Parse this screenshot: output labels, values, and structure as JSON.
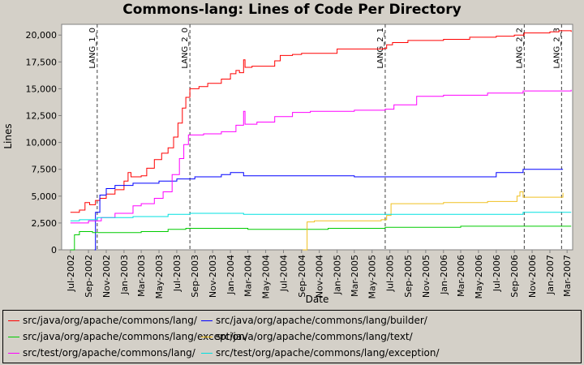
{
  "chart_data": {
    "type": "line",
    "title": "Commons-lang: Lines of Code Per Directory",
    "xlabel": "Date",
    "ylabel": "Lines",
    "ylim": [
      0,
      21000
    ],
    "xlim": [
      "2002-06-01",
      "2007-03-20"
    ],
    "y_ticks": [
      "0",
      "2,500",
      "5,000",
      "7,500",
      "10,000",
      "12,500",
      "15,000",
      "17,500",
      "20,000"
    ],
    "x_ticks": [
      "Jul-2002",
      "Sep-2002",
      "Nov-2002",
      "Jan-2003",
      "Mar-2003",
      "May-2003",
      "Jul-2003",
      "Sep-2003",
      "Nov-2003",
      "Jan-2004",
      "Mar-2004",
      "May-2004",
      "Jul-2004",
      "Sep-2004",
      "Nov-2004",
      "Jan-2005",
      "Mar-2005",
      "May-2005",
      "Jul-2005",
      "Sep-2005",
      "Nov-2005",
      "Jan-2006",
      "Mar-2006",
      "May-2006",
      "Jul-2006",
      "Sep-2006",
      "Nov-2006",
      "Jan-2007",
      "Mar-2007"
    ],
    "legend_position": "bottom",
    "grid": false,
    "markers": [
      {
        "label": "LANG_1_0",
        "date": "2002-10-01"
      },
      {
        "label": "LANG_2_0",
        "date": "2003-08-15"
      },
      {
        "label": "LANG_2_1",
        "date": "2005-06-15"
      },
      {
        "label": "LANG_2_2",
        "date": "2006-10-05"
      },
      {
        "label": "LANG_2_3",
        "date": "2007-02-10"
      }
    ],
    "series": [
      {
        "name": "src/java/org/apache/commons/lang/",
        "color": "#ff0000",
        "points": [
          [
            "2002-07-01",
            3500
          ],
          [
            "2002-08-01",
            3700
          ],
          [
            "2002-08-20",
            4400
          ],
          [
            "2002-09-05",
            4200
          ],
          [
            "2002-09-25",
            4600
          ],
          [
            "2002-10-10",
            4800
          ],
          [
            "2002-11-01",
            5200
          ],
          [
            "2002-12-01",
            5600
          ],
          [
            "2003-01-01",
            6400
          ],
          [
            "2003-01-15",
            7200
          ],
          [
            "2003-01-25",
            6800
          ],
          [
            "2003-03-01",
            6900
          ],
          [
            "2003-03-20",
            7600
          ],
          [
            "2003-04-15",
            8400
          ],
          [
            "2003-05-10",
            9000
          ],
          [
            "2003-06-01",
            9500
          ],
          [
            "2003-06-20",
            10500
          ],
          [
            "2003-07-05",
            11800
          ],
          [
            "2003-07-20",
            13200
          ],
          [
            "2003-08-01",
            14200
          ],
          [
            "2003-08-15",
            15000
          ],
          [
            "2003-09-15",
            15200
          ],
          [
            "2003-10-15",
            15500
          ],
          [
            "2003-12-01",
            15900
          ],
          [
            "2004-01-01",
            16400
          ],
          [
            "2004-01-20",
            16700
          ],
          [
            "2004-02-01",
            16500
          ],
          [
            "2004-02-15",
            17700
          ],
          [
            "2004-02-20",
            17000
          ],
          [
            "2004-03-15",
            17100
          ],
          [
            "2004-06-01",
            17600
          ],
          [
            "2004-06-20",
            18100
          ],
          [
            "2004-08-01",
            18200
          ],
          [
            "2004-09-01",
            18300
          ],
          [
            "2004-12-01",
            18300
          ],
          [
            "2005-01-01",
            18700
          ],
          [
            "2005-03-01",
            18700
          ],
          [
            "2005-06-10",
            18750
          ],
          [
            "2005-06-20",
            19100
          ],
          [
            "2005-07-10",
            19300
          ],
          [
            "2005-09-01",
            19500
          ],
          [
            "2006-01-01",
            19600
          ],
          [
            "2006-04-01",
            19800
          ],
          [
            "2006-07-01",
            19900
          ],
          [
            "2006-09-01",
            20000
          ],
          [
            "2006-10-05",
            20200
          ],
          [
            "2007-01-01",
            20300
          ],
          [
            "2007-02-01",
            20400
          ],
          [
            "2007-03-15",
            20300
          ]
        ]
      },
      {
        "name": "src/java/org/apache/commons/lang/builder/",
        "color": "#0000ff",
        "points": [
          [
            "2002-09-22",
            0
          ],
          [
            "2002-09-25",
            3500
          ],
          [
            "2002-10-10",
            5100
          ],
          [
            "2002-11-01",
            5700
          ],
          [
            "2002-12-01",
            6000
          ],
          [
            "2003-02-01",
            6200
          ],
          [
            "2003-05-01",
            6400
          ],
          [
            "2003-07-01",
            6600
          ],
          [
            "2003-09-01",
            6800
          ],
          [
            "2003-12-01",
            7000
          ],
          [
            "2004-01-01",
            7200
          ],
          [
            "2004-02-15",
            6900
          ],
          [
            "2004-08-01",
            6900
          ],
          [
            "2005-03-01",
            6800
          ],
          [
            "2006-06-01",
            6800
          ],
          [
            "2006-07-01",
            7200
          ],
          [
            "2006-10-01",
            7500
          ],
          [
            "2007-02-15",
            7500
          ]
        ]
      },
      {
        "name": "src/java/org/apache/commons/lang/exception/",
        "color": "#00cc00",
        "points": [
          [
            "2002-07-01",
            0
          ],
          [
            "2002-07-15",
            1400
          ],
          [
            "2002-08-01",
            1700
          ],
          [
            "2002-09-15",
            1600
          ],
          [
            "2003-03-01",
            1700
          ],
          [
            "2003-06-01",
            1900
          ],
          [
            "2003-08-01",
            2000
          ],
          [
            "2004-02-15",
            2000
          ],
          [
            "2004-03-01",
            1900
          ],
          [
            "2004-12-01",
            2000
          ],
          [
            "2005-06-15",
            2100
          ],
          [
            "2006-03-01",
            2200
          ],
          [
            "2006-06-01",
            2200
          ],
          [
            "2007-03-15",
            2200
          ]
        ]
      },
      {
        "name": "src/java/org/apache/commons/lang/text/",
        "color": "#f0c020",
        "points": [
          [
            "2004-09-05",
            0
          ],
          [
            "2004-09-20",
            2600
          ],
          [
            "2004-10-15",
            2700
          ],
          [
            "2005-06-01",
            2800
          ],
          [
            "2005-06-20",
            3200
          ],
          [
            "2005-07-05",
            4300
          ],
          [
            "2006-01-01",
            4400
          ],
          [
            "2006-06-01",
            4500
          ],
          [
            "2006-09-10",
            5000
          ],
          [
            "2006-09-20",
            5400
          ],
          [
            "2006-10-01",
            4900
          ],
          [
            "2007-02-15",
            5300
          ]
        ]
      },
      {
        "name": "src/test/org/apache/commons/lang/",
        "color": "#ff00ff",
        "points": [
          [
            "2002-07-01",
            2500
          ],
          [
            "2002-09-01",
            2700
          ],
          [
            "2002-10-15",
            3000
          ],
          [
            "2002-12-01",
            3400
          ],
          [
            "2003-02-01",
            4100
          ],
          [
            "2003-03-01",
            4300
          ],
          [
            "2003-04-15",
            4800
          ],
          [
            "2003-05-15",
            5400
          ],
          [
            "2003-06-15",
            7000
          ],
          [
            "2003-07-10",
            8500
          ],
          [
            "2003-07-25",
            9800
          ],
          [
            "2003-08-10",
            10700
          ],
          [
            "2003-10-01",
            10800
          ],
          [
            "2003-12-01",
            11000
          ],
          [
            "2004-01-20",
            11600
          ],
          [
            "2004-02-15",
            12900
          ],
          [
            "2004-02-20",
            11700
          ],
          [
            "2004-04-01",
            11900
          ],
          [
            "2004-06-01",
            12400
          ],
          [
            "2004-08-01",
            12800
          ],
          [
            "2004-10-01",
            12900
          ],
          [
            "2005-01-01",
            12900
          ],
          [
            "2005-03-01",
            13000
          ],
          [
            "2005-06-15",
            13100
          ],
          [
            "2005-07-15",
            13500
          ],
          [
            "2005-10-01",
            14300
          ],
          [
            "2006-01-01",
            14400
          ],
          [
            "2006-06-01",
            14600
          ],
          [
            "2006-10-01",
            14800
          ],
          [
            "2007-01-15",
            14800
          ],
          [
            "2007-03-15",
            14900
          ]
        ]
      },
      {
        "name": "src/test/org/apache/commons/lang/exception/",
        "color": "#00e0e0",
        "points": [
          [
            "2002-07-01",
            2700
          ],
          [
            "2002-08-01",
            2800
          ],
          [
            "2002-10-01",
            3000
          ],
          [
            "2003-02-01",
            3100
          ],
          [
            "2003-06-01",
            3300
          ],
          [
            "2003-08-15",
            3400
          ],
          [
            "2004-02-15",
            3300
          ],
          [
            "2004-09-15",
            3300
          ],
          [
            "2005-06-15",
            3300
          ],
          [
            "2006-01-01",
            3300
          ],
          [
            "2006-10-01",
            3500
          ],
          [
            "2007-03-15",
            3500
          ]
        ]
      }
    ]
  }
}
